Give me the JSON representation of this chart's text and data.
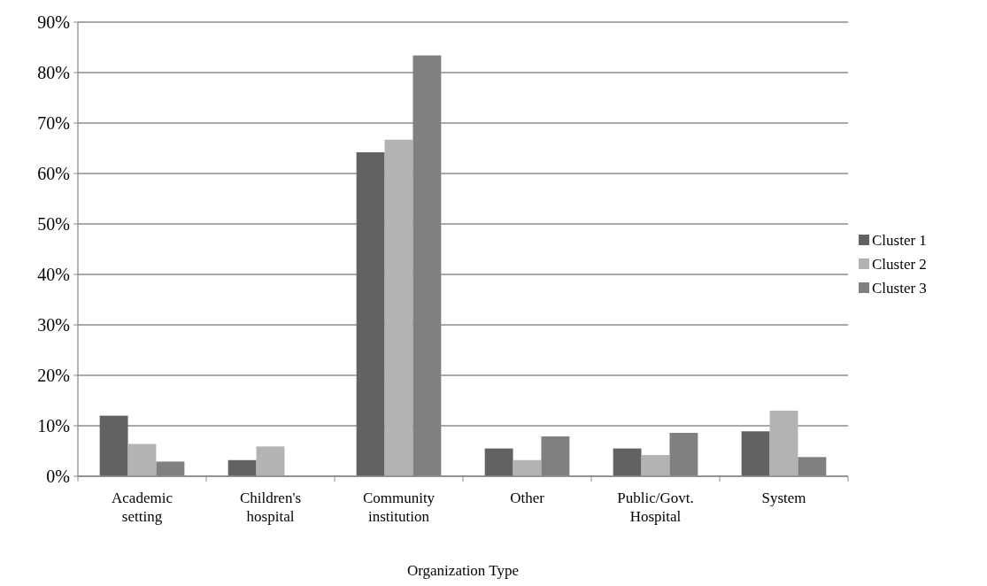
{
  "chart_data": {
    "type": "bar",
    "xlabel": "Organization Type",
    "categories": [
      "Academic setting",
      "Children's hospital",
      "Community institution",
      "Other",
      "Public/Govt. Hospital",
      "System"
    ],
    "series": [
      {
        "name": "Cluster 1",
        "color": "#626262",
        "values": [
          12.0,
          3.2,
          64.2,
          5.5,
          5.5,
          8.9
        ]
      },
      {
        "name": "Cluster 2",
        "color": "#b3b3b3",
        "values": [
          6.4,
          5.9,
          66.7,
          3.2,
          4.2,
          13.0
        ]
      },
      {
        "name": "Cluster 3",
        "color": "#808080",
        "values": [
          2.9,
          0,
          83.4,
          7.9,
          8.6,
          3.8
        ]
      }
    ],
    "ylim": [
      0,
      90
    ],
    "yticks": [
      {
        "value": 0,
        "label": "0%"
      },
      {
        "value": 10,
        "label": "10%"
      },
      {
        "value": 20,
        "label": "20%"
      },
      {
        "value": 30,
        "label": "30%"
      },
      {
        "value": 40,
        "label": "40%"
      },
      {
        "value": 50,
        "label": "50%"
      },
      {
        "value": 60,
        "label": "60%"
      },
      {
        "value": 70,
        "label": "70%"
      },
      {
        "value": 80,
        "label": "80%"
      },
      {
        "value": 90,
        "label": "90%"
      }
    ],
    "grid": "y",
    "legend": "right"
  }
}
